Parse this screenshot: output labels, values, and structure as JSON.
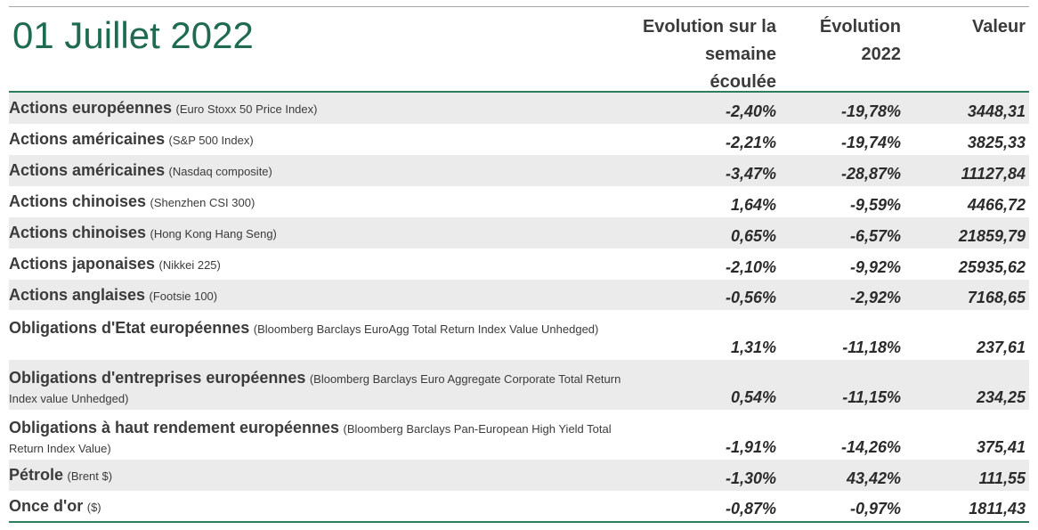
{
  "title": "01 Juillet 2022",
  "headers": {
    "weekly_line1": "Evolution sur la",
    "weekly_line2": "semaine",
    "weekly_line3": "écoulée",
    "ytd_line1": "Évolution",
    "ytd_line2": "2022",
    "value": "Valeur"
  },
  "rows": [
    {
      "label": "Actions européennes",
      "index": "(Euro Stoxx 50 Price Index)",
      "week": "-2,40%",
      "ytd": "-19,78%",
      "value": "3448,31"
    },
    {
      "label": "Actions américaines",
      "index": "(S&P 500 Index)",
      "week": "-2,21%",
      "ytd": "-19,74%",
      "value": "3825,33"
    },
    {
      "label": "Actions américaines",
      "index": "(Nasdaq composite)",
      "week": "-3,47%",
      "ytd": "-28,87%",
      "value": "11127,84"
    },
    {
      "label": "Actions chinoises",
      "index": "(Shenzhen CSI 300)",
      "week": "1,64%",
      "ytd": "-9,59%",
      "value": "4466,72"
    },
    {
      "label": "Actions chinoises",
      "index": "(Hong Kong Hang Seng)",
      "week": "0,65%",
      "ytd": "-6,57%",
      "value": "21859,79"
    },
    {
      "label": "Actions japonaises",
      "index": "(Nikkei 225)",
      "week": "-2,10%",
      "ytd": "-9,92%",
      "value": "25935,62"
    },
    {
      "label": "Actions anglaises",
      "index": "(Footsie 100)",
      "week": "-0,56%",
      "ytd": "-2,92%",
      "value": "7168,65"
    },
    {
      "label": "Obligations d'Etat européennes",
      "index": "(Bloomberg Barclays EuroAgg Total Return Index Value Unhedged)",
      "week": "1,31%",
      "ytd": "-11,18%",
      "value": "237,61"
    },
    {
      "label": "Obligations d'entreprises européennes",
      "index": "(Bloomberg Barclays Euro Aggregate Corporate Total Return Index value Unhedged)",
      "week": "0,54%",
      "ytd": "-11,15%",
      "value": "234,25"
    },
    {
      "label": "Obligations à haut rendement européennes",
      "index": "(Bloomberg Barclays Pan-European High Yield Total Return Index Value)",
      "week": "-1,91%",
      "ytd": "-14,26%",
      "value": "375,41"
    },
    {
      "label": "Pétrole",
      "index": "(Brent $)",
      "week": "-1,30%",
      "ytd": "43,42%",
      "value": "111,55"
    },
    {
      "label": "Once d'or",
      "index": "($)",
      "week": "-0,87%",
      "ytd": "-0,97%",
      "value": "1811,43"
    }
  ]
}
